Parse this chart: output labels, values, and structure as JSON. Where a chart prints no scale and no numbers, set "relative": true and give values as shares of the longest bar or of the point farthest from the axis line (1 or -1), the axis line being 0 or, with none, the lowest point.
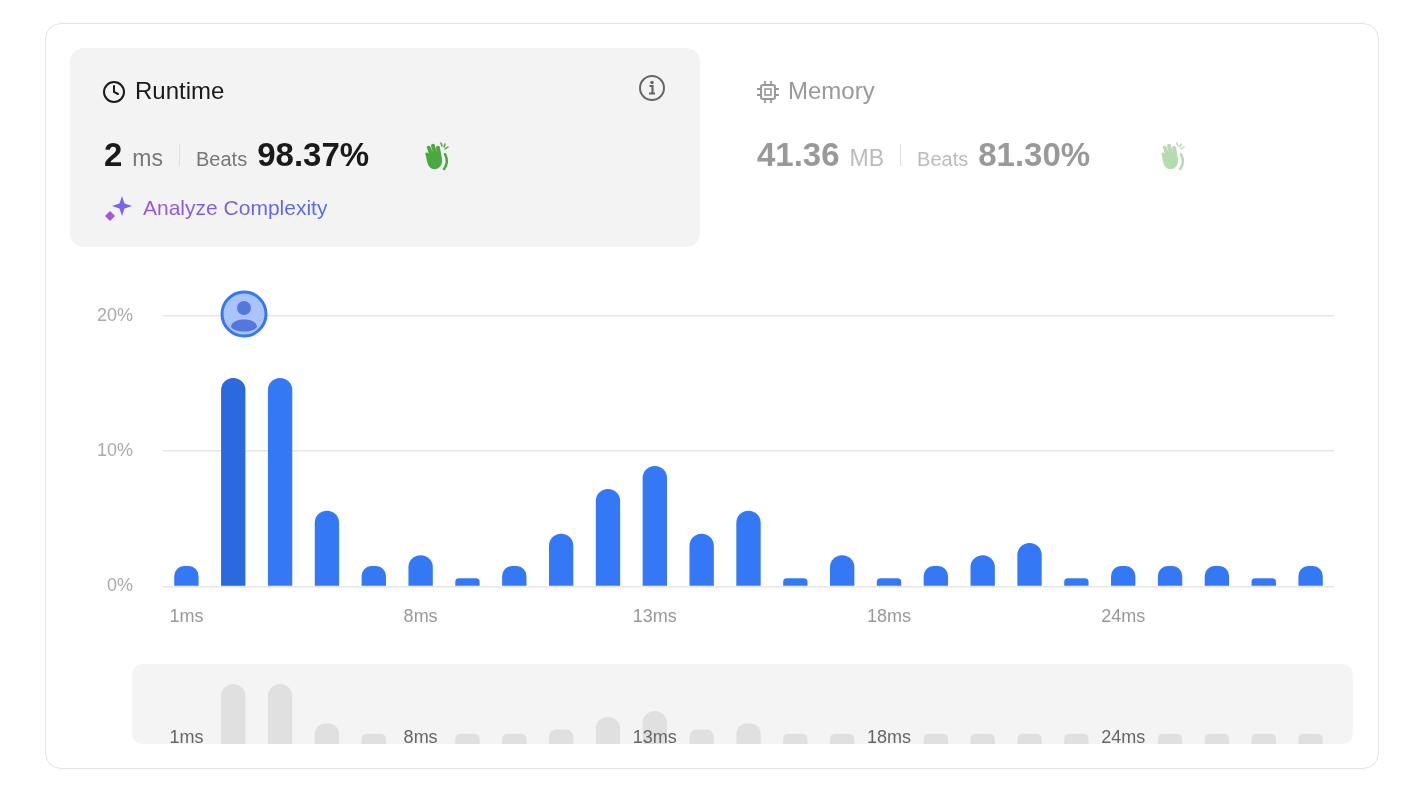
{
  "chart_data": [
    {
      "type": "other",
      "title": "Runtime",
      "annotations": [
        "2",
        "ms",
        "Beats",
        "98.37%",
        "Analyze Complexity"
      ]
    },
    {
      "type": "other",
      "title": "Memory",
      "annotations": [
        "41.36",
        "MB",
        "Beats",
        "81.30%"
      ]
    },
    {
      "type": "bar",
      "categories": [
        "1ms",
        null,
        null,
        null,
        null,
        "8ms",
        null,
        null,
        null,
        null,
        "13ms",
        null,
        null,
        null,
        null,
        "18ms",
        null,
        null,
        null,
        null,
        "24ms",
        null,
        null,
        null,
        null
      ],
      "values": [
        1.5,
        15.4,
        15.4,
        5.6,
        1.5,
        2.3,
        0.6,
        1.5,
        3.9,
        7.2,
        8.9,
        3.9,
        5.6,
        0.6,
        2.3,
        0.6,
        1.5,
        2.3,
        3.2,
        0.6,
        1.5,
        1.5,
        1.5,
        0.6,
        1.5
      ],
      "colors": [
        "#3478f6",
        "#2b6ade",
        "#3478f6",
        "#3478f6",
        "#3478f6",
        "#3478f6",
        "#3478f6",
        "#3478f6",
        "#3478f6",
        "#3478f6",
        "#3478f6",
        "#3478f6",
        "#3478f6",
        "#3478f6",
        "#3478f6",
        "#3478f6",
        "#3478f6",
        "#3478f6",
        "#3478f6",
        "#3478f6",
        "#3478f6",
        "#3478f6",
        "#3478f6",
        "#3478f6",
        "#3478f6"
      ],
      "ylim": [
        0,
        20
      ],
      "yticks": [
        {
          "value": 0,
          "label": "0%"
        },
        {
          "value": 10,
          "label": "10%"
        },
        {
          "value": 20,
          "label": "20%"
        }
      ],
      "grid": "y"
    },
    {
      "type": "bar",
      "relative": true,
      "categories": [
        "1ms",
        null,
        null,
        null,
        null,
        "8ms",
        null,
        null,
        null,
        null,
        "13ms",
        null,
        null,
        null,
        null,
        "18ms",
        null,
        null,
        null,
        null,
        "24ms",
        null,
        null,
        null,
        null
      ],
      "values": [
        null,
        1,
        1,
        0.34,
        0.17,
        null,
        0.17,
        0.17,
        0.24,
        0.45,
        0.55,
        0.24,
        0.34,
        0.17,
        0.17,
        null,
        0.17,
        0.17,
        0.17,
        0.17,
        null,
        0.17,
        0.17,
        0.17,
        0.17
      ],
      "color": "#e0e0e0"
    }
  ]
}
